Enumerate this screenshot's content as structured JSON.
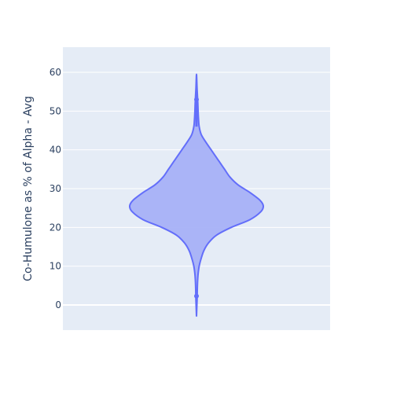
{
  "chart_data": {
    "type": "violin",
    "title": "",
    "xlabel": "",
    "ylabel": "Co-Humulone as % of Alpha - Avg",
    "ylim": [
      -6.5,
      66.5
    ],
    "yticks": [
      0,
      10,
      20,
      30,
      40,
      50,
      60
    ],
    "grid": true,
    "colors": {
      "plot_bg": "#e5ecf6",
      "grid": "#ffffff",
      "violin_fill": "#a6b1f7",
      "violin_line": "#636efa",
      "text": "#2a3f5f"
    },
    "violin": {
      "y_min": -3,
      "y_max": 59.5,
      "max_width_fraction": 0.5,
      "density": [
        [
          -3,
          0.0
        ],
        [
          0,
          0.006
        ],
        [
          2,
          0.01
        ],
        [
          4,
          0.012
        ],
        [
          6,
          0.016
        ],
        [
          8,
          0.024
        ],
        [
          10,
          0.04
        ],
        [
          12,
          0.07
        ],
        [
          14,
          0.11
        ],
        [
          16,
          0.18
        ],
        [
          18,
          0.3
        ],
        [
          20,
          0.52
        ],
        [
          22,
          0.8
        ],
        [
          24,
          0.96
        ],
        [
          25.5,
          1.0
        ],
        [
          27,
          0.95
        ],
        [
          29,
          0.8
        ],
        [
          31,
          0.62
        ],
        [
          33,
          0.5
        ],
        [
          35,
          0.42
        ],
        [
          37,
          0.34
        ],
        [
          38,
          0.3
        ],
        [
          40,
          0.22
        ],
        [
          42,
          0.14
        ],
        [
          44,
          0.07
        ],
        [
          46,
          0.04
        ],
        [
          48,
          0.03
        ],
        [
          50,
          0.024
        ],
        [
          52,
          0.02
        ],
        [
          54,
          0.014
        ],
        [
          56,
          0.008
        ],
        [
          58,
          0.004
        ],
        [
          59.5,
          0.0
        ]
      ],
      "outlier_points": [
        50,
        53,
        2.3
      ],
      "line_segments": [
        [
          0.2,
          4
        ],
        [
          46,
          55
        ]
      ]
    }
  }
}
